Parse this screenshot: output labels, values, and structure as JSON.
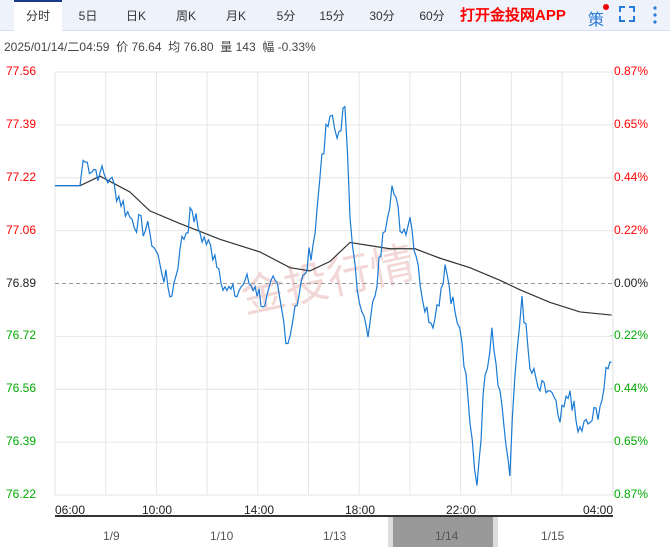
{
  "tabs": [
    "分时",
    "5日",
    "日K",
    "周K",
    "月K",
    "5分",
    "15分",
    "30分",
    "60分"
  ],
  "app_link": "打开金投网APP",
  "strategy_label": "策",
  "info": {
    "datetime": "2025/01/14/二04:59",
    "price_label": "价",
    "price": "76.64",
    "avg_label": "均",
    "avg": "76.80",
    "vol_label": "量",
    "vol": "143",
    "chg_label": "幅",
    "chg": "-0.33%"
  },
  "y_left": [
    "77.56",
    "77.39",
    "77.22",
    "77.06",
    "76.89",
    "76.72",
    "76.56",
    "76.39",
    "76.22"
  ],
  "y_right": [
    "0.87%",
    "0.65%",
    "0.44%",
    "0.22%",
    "0.00%",
    "-0.22%",
    "-0.44%",
    "-0.65%",
    "-0.87%"
  ],
  "x_labels": [
    "06:00",
    "10:00",
    "14:00",
    "18:00",
    "22:00",
    "04:00"
  ],
  "nav_dates": [
    "1/9",
    "1/10",
    "1/13",
    "1/14",
    "1/15"
  ],
  "watermark": "金投行情",
  "colors": {
    "up": "#f00",
    "down": "#0a0",
    "price_line": "#1a7ad4",
    "avg_line": "#333"
  },
  "chart_data": {
    "type": "line",
    "x_unit": "hours since 06:00",
    "ylim": [
      76.22,
      77.56
    ],
    "ref": 76.89,
    "price": [
      [
        0,
        77.2
      ],
      [
        0.99,
        77.2
      ],
      [
        1.11,
        77.28
      ],
      [
        1.78,
        77.24
      ],
      [
        2.17,
        77.22
      ],
      [
        2.96,
        77.1
      ],
      [
        3.75,
        77.05
      ],
      [
        4.15,
        76.95
      ],
      [
        4.62,
        76.85
      ],
      [
        4.94,
        77.0
      ],
      [
        5.42,
        77.12
      ],
      [
        5.73,
        77.05
      ],
      [
        6.32,
        76.98
      ],
      [
        6.72,
        76.88
      ],
      [
        7.11,
        76.85
      ],
      [
        7.51,
        76.9
      ],
      [
        7.91,
        76.88
      ],
      [
        8.3,
        76.82
      ],
      [
        8.7,
        76.9
      ],
      [
        9.21,
        76.7
      ],
      [
        9.49,
        76.82
      ],
      [
        9.88,
        76.92
      ],
      [
        10.28,
        77.05
      ],
      [
        10.55,
        77.3
      ],
      [
        10.87,
        77.42
      ],
      [
        11.15,
        77.35
      ],
      [
        11.46,
        77.45
      ],
      [
        11.66,
        77.1
      ],
      [
        11.86,
        76.95
      ],
      [
        12.13,
        76.8
      ],
      [
        12.37,
        76.72
      ],
      [
        12.65,
        76.85
      ],
      [
        12.96,
        77.05
      ],
      [
        13.32,
        77.2
      ],
      [
        13.72,
        77.05
      ],
      [
        14.03,
        77.1
      ],
      [
        14.35,
        76.95
      ],
      [
        14.62,
        76.8
      ],
      [
        15.02,
        76.78
      ],
      [
        15.42,
        76.95
      ],
      [
        15.81,
        76.8
      ],
      [
        16.09,
        76.7
      ],
      [
        16.4,
        76.45
      ],
      [
        16.68,
        76.25
      ],
      [
        17.0,
        76.6
      ],
      [
        17.27,
        76.75
      ],
      [
        17.59,
        76.55
      ],
      [
        17.98,
        76.28
      ],
      [
        18.18,
        76.6
      ],
      [
        18.46,
        76.85
      ],
      [
        18.77,
        76.62
      ],
      [
        19.17,
        76.55
      ],
      [
        19.57,
        76.55
      ],
      [
        19.96,
        76.45
      ],
      [
        20.36,
        76.55
      ],
      [
        20.67,
        76.42
      ],
      [
        21.15,
        76.45
      ],
      [
        21.54,
        76.5
      ],
      [
        21.86,
        76.62
      ],
      [
        22.0,
        76.64
      ]
    ],
    "avg": [
      [
        0,
        77.2
      ],
      [
        0.99,
        77.2
      ],
      [
        1.78,
        77.23
      ],
      [
        2.96,
        77.18
      ],
      [
        3.75,
        77.12
      ],
      [
        4.94,
        77.08
      ],
      [
        6.52,
        77.03
      ],
      [
        8.1,
        76.99
      ],
      [
        9.29,
        76.94
      ],
      [
        10.08,
        76.93
      ],
      [
        10.87,
        76.96
      ],
      [
        11.66,
        77.02
      ],
      [
        12.45,
        77.01
      ],
      [
        13.24,
        77.0
      ],
      [
        14.23,
        77.0
      ],
      [
        15.22,
        76.97
      ],
      [
        16.4,
        76.94
      ],
      [
        17.59,
        76.9
      ],
      [
        18.38,
        76.87
      ],
      [
        19.57,
        76.83
      ],
      [
        20.75,
        76.8
      ],
      [
        22.0,
        76.79
      ]
    ]
  }
}
